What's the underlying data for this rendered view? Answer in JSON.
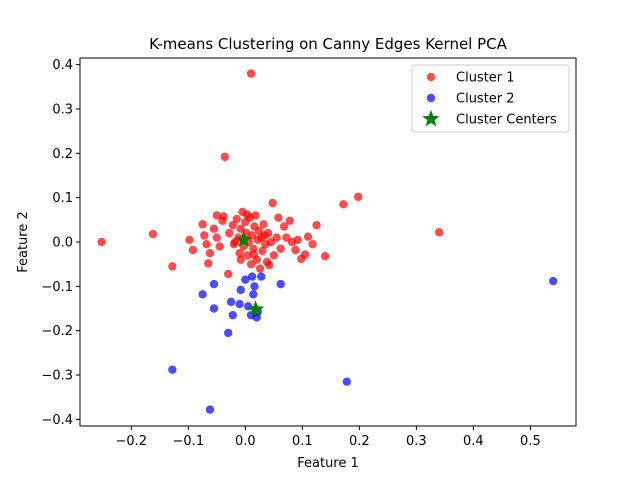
{
  "chart_data": {
    "type": "scatter",
    "title": "K-means Clustering on Canny Edges Kernel PCA",
    "xlabel": "Feature 1",
    "ylabel": "Feature 2",
    "xlim": [
      -0.29,
      0.58
    ],
    "ylim": [
      -0.415,
      0.415
    ],
    "xticks": [
      -0.2,
      -0.1,
      0.0,
      0.1,
      0.2,
      0.3,
      0.4,
      0.5
    ],
    "yticks": [
      -0.4,
      -0.3,
      -0.2,
      -0.1,
      0.0,
      0.1,
      0.2,
      0.3,
      0.4
    ],
    "xtick_labels": [
      "−0.2",
      "−0.1",
      "0.0",
      "0.1",
      "0.2",
      "0.3",
      "0.4",
      "0.5"
    ],
    "ytick_labels": [
      "−0.4",
      "−0.3",
      "−0.2",
      "−0.1",
      "0.0",
      "0.1",
      "0.2",
      "0.3",
      "0.4"
    ],
    "grid": false,
    "legend_position": "top-right",
    "series": [
      {
        "name": "Cluster 1",
        "color": "#ff0000",
        "marker": "circle",
        "points": [
          [
            -0.252,
            0.0
          ],
          [
            -0.162,
            0.018
          ],
          [
            -0.128,
            -0.055
          ],
          [
            -0.098,
            0.005
          ],
          [
            -0.092,
            -0.018
          ],
          [
            -0.075,
            0.04
          ],
          [
            -0.072,
            0.015
          ],
          [
            -0.068,
            -0.005
          ],
          [
            -0.062,
            -0.025
          ],
          [
            -0.065,
            -0.048
          ],
          [
            -0.055,
            0.03
          ],
          [
            -0.05,
            0.01
          ],
          [
            -0.045,
            -0.01
          ],
          [
            -0.04,
            0.048
          ],
          [
            -0.038,
            0.058
          ],
          [
            -0.03,
            -0.072
          ],
          [
            -0.036,
            0.192
          ],
          [
            0.01,
            0.38
          ],
          [
            -0.028,
            0.02
          ],
          [
            -0.022,
            0.038
          ],
          [
            -0.02,
            -0.005
          ],
          [
            -0.015,
            0.052
          ],
          [
            -0.012,
            0.01
          ],
          [
            -0.01,
            -0.025
          ],
          [
            -0.008,
            0.03
          ],
          [
            -0.005,
            0.068
          ],
          [
            -0.003,
            -0.01
          ],
          [
            0.0,
            0.045
          ],
          [
            0.002,
            0.02
          ],
          [
            0.004,
            -0.03
          ],
          [
            0.006,
            0.0
          ],
          [
            0.008,
            0.055
          ],
          [
            0.01,
            -0.05
          ],
          [
            0.012,
            0.015
          ],
          [
            0.014,
            -0.015
          ],
          [
            0.016,
            0.035
          ],
          [
            0.018,
            0.06
          ],
          [
            0.02,
            -0.04
          ],
          [
            0.022,
            0.005
          ],
          [
            0.024,
            0.025
          ],
          [
            0.026,
            -0.06
          ],
          [
            0.028,
            0.01
          ],
          [
            0.03,
            -0.02
          ],
          [
            0.032,
            0.04
          ],
          [
            0.035,
            -0.005
          ],
          [
            0.038,
            -0.045
          ],
          [
            0.04,
            0.02
          ],
          [
            0.042,
            -0.052
          ],
          [
            0.045,
            0.0
          ],
          [
            0.048,
            0.088
          ],
          [
            0.05,
            -0.03
          ],
          [
            0.055,
            0.01
          ],
          [
            0.058,
            0.055
          ],
          [
            0.062,
            -0.015
          ],
          [
            0.068,
            0.035
          ],
          [
            0.072,
            0.01
          ],
          [
            0.078,
            0.048
          ],
          [
            0.082,
            0.0
          ],
          [
            0.088,
            -0.018
          ],
          [
            0.092,
            0.005
          ],
          [
            0.098,
            -0.038
          ],
          [
            0.105,
            -0.028
          ],
          [
            0.11,
            0.012
          ],
          [
            0.118,
            -0.005
          ],
          [
            0.125,
            0.038
          ],
          [
            0.14,
            -0.032
          ],
          [
            0.172,
            0.085
          ],
          [
            0.198,
            0.102
          ],
          [
            0.34,
            0.022
          ],
          [
            -0.05,
            0.06
          ],
          [
            -0.018,
            0.0
          ],
          [
            -0.008,
            -0.04
          ],
          [
            0.003,
            0.062
          ],
          [
            0.015,
            -0.028
          ],
          [
            0.034,
            0.015
          ]
        ]
      },
      {
        "name": "Cluster 2",
        "color": "#0000ff",
        "marker": "circle",
        "points": [
          [
            -0.128,
            -0.288
          ],
          [
            -0.062,
            -0.378
          ],
          [
            -0.075,
            -0.118
          ],
          [
            -0.055,
            -0.095
          ],
          [
            -0.055,
            -0.15
          ],
          [
            -0.03,
            -0.205
          ],
          [
            -0.025,
            -0.135
          ],
          [
            -0.022,
            -0.165
          ],
          [
            -0.01,
            -0.14
          ],
          [
            -0.008,
            -0.108
          ],
          [
            0.0,
            -0.085
          ],
          [
            0.005,
            -0.145
          ],
          [
            0.01,
            -0.165
          ],
          [
            0.012,
            -0.078
          ],
          [
            0.014,
            -0.118
          ],
          [
            0.016,
            -0.1
          ],
          [
            0.02,
            -0.17
          ],
          [
            0.022,
            -0.158
          ],
          [
            0.028,
            -0.078
          ],
          [
            0.062,
            -0.095
          ],
          [
            0.178,
            -0.315
          ],
          [
            0.54,
            -0.088
          ]
        ]
      },
      {
        "name": "Cluster Centers",
        "color": "#008000",
        "marker": "star",
        "points": [
          [
            -0.003,
            0.005
          ],
          [
            0.018,
            -0.152
          ]
        ]
      }
    ]
  }
}
